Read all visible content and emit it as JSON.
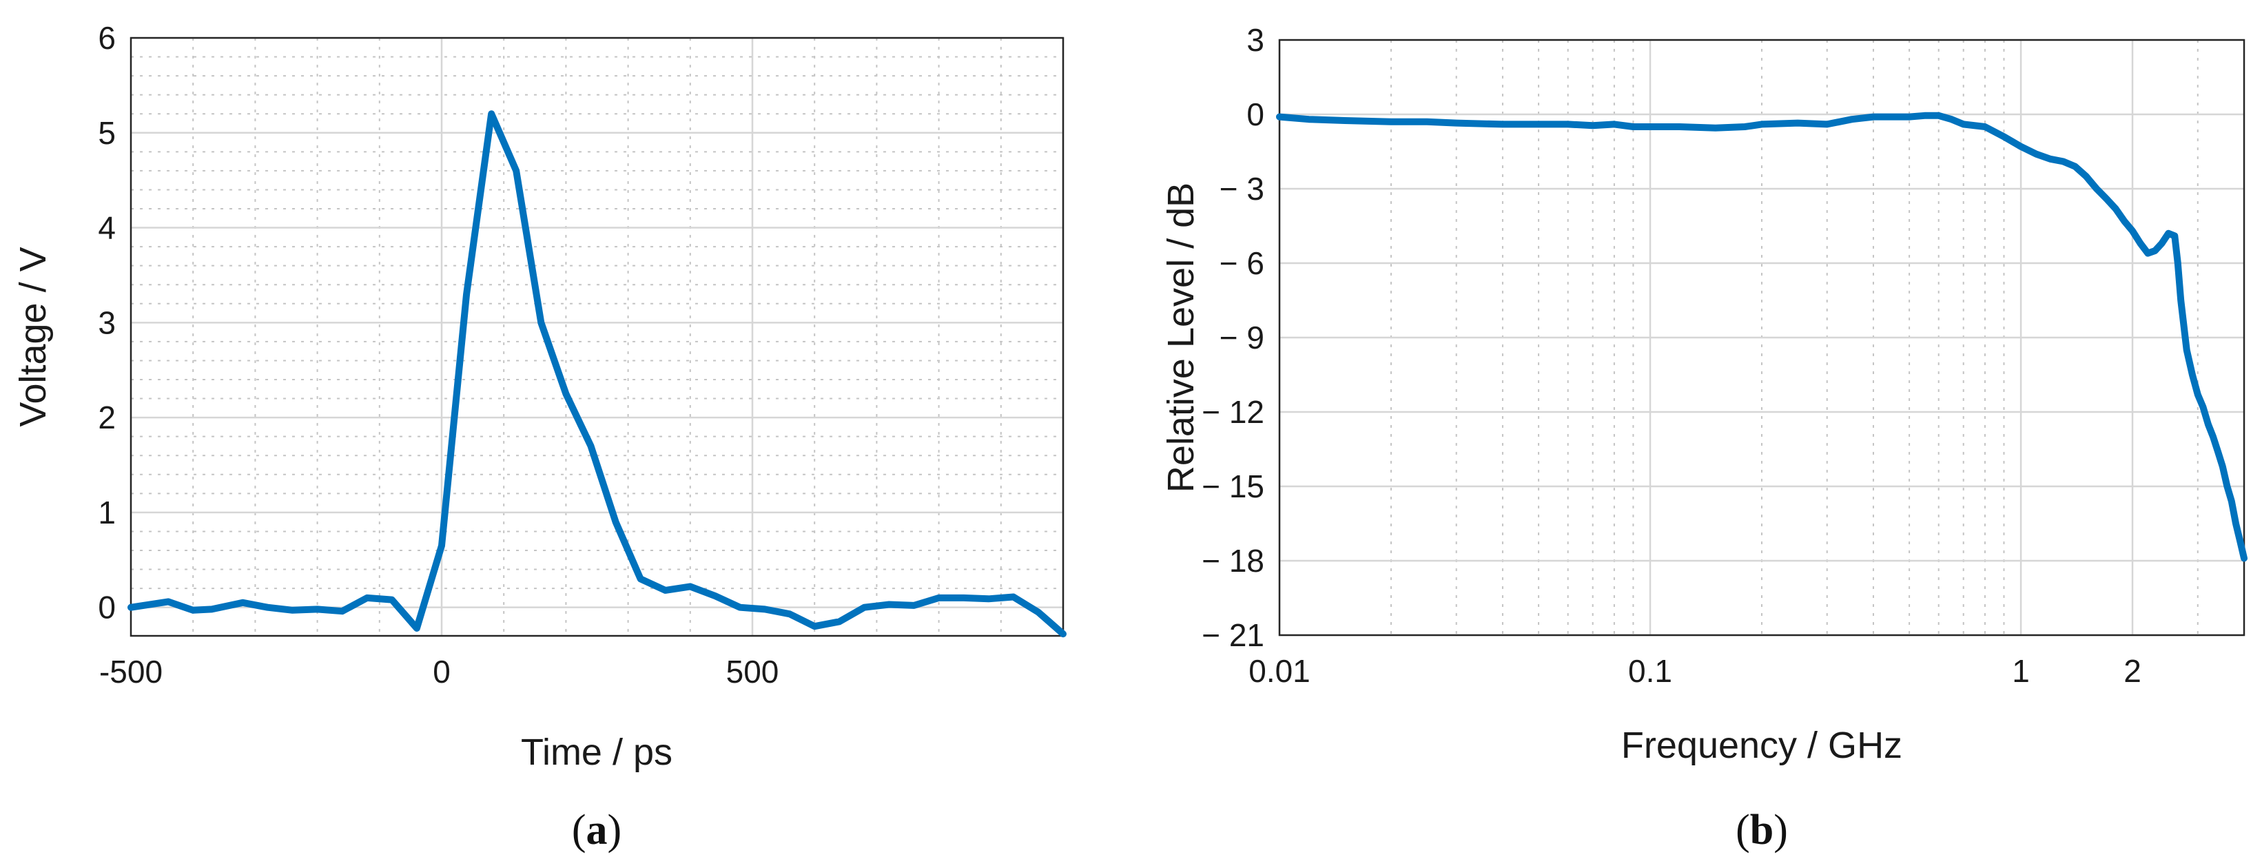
{
  "accent_color": "#0072BD",
  "chart_data": [
    {
      "type": "line",
      "caption_label": "a",
      "xlabel": "Time / ps",
      "ylabel": "Voltage / V",
      "xlim": [
        -500,
        1000
      ],
      "ylim": [
        -0.3,
        6
      ],
      "xticks": [
        -500,
        0,
        500
      ],
      "yticks": [
        0,
        1,
        2,
        3,
        4,
        5,
        6
      ],
      "grid": "major and minor",
      "series": [
        {
          "color": "#0072BD",
          "x": [
            -500,
            -440,
            -400,
            -370,
            -320,
            -280,
            -240,
            -200,
            -160,
            -120,
            -80,
            -40,
            0,
            40,
            80,
            120,
            160,
            200,
            240,
            280,
            320,
            360,
            400,
            440,
            480,
            520,
            560,
            600,
            640,
            680,
            720,
            760,
            800,
            840,
            880,
            920,
            960,
            1000
          ],
          "y": [
            0.0,
            0.06,
            -0.03,
            -0.02,
            0.05,
            0.0,
            -0.03,
            -0.02,
            -0.04,
            0.1,
            0.08,
            -0.22,
            0.65,
            3.3,
            5.2,
            4.6,
            3.0,
            2.25,
            1.7,
            0.9,
            0.3,
            0.18,
            0.22,
            0.12,
            0.0,
            -0.02,
            -0.07,
            -0.2,
            -0.15,
            0.0,
            0.03,
            0.02,
            0.1,
            0.1,
            0.09,
            0.11,
            -0.05,
            -0.28
          ]
        }
      ]
    },
    {
      "type": "line",
      "caption_label": "b",
      "xlabel": "Frequency / GHz",
      "ylabel": "Relative Level / dB",
      "xscale": "log",
      "xlim": [
        0.01,
        4
      ],
      "ylim": [
        -21,
        3
      ],
      "xticks": [
        0.01,
        0.1,
        1,
        2
      ],
      "xtick_labels": [
        "0.01",
        "0.1",
        "1",
        "2"
      ],
      "yticks": [
        3,
        0,
        -3,
        -6,
        -9,
        -12,
        -15,
        -18,
        -21
      ],
      "ytick_labels": [
        "3",
        "0",
        "− 3",
        "− 6",
        "− 9",
        "− 12",
        "− 15",
        "− 18",
        "− 21"
      ],
      "grid": "major and minor",
      "series": [
        {
          "color": "#0072BD",
          "x": [
            0.01,
            0.012,
            0.015,
            0.02,
            0.025,
            0.03,
            0.04,
            0.05,
            0.06,
            0.07,
            0.08,
            0.09,
            0.1,
            0.12,
            0.15,
            0.18,
            0.2,
            0.25,
            0.3,
            0.35,
            0.4,
            0.45,
            0.5,
            0.55,
            0.6,
            0.65,
            0.7,
            0.8,
            0.9,
            1.0,
            1.1,
            1.2,
            1.3,
            1.4,
            1.5,
            1.6,
            1.7,
            1.8,
            1.9,
            2.0,
            2.1,
            2.2,
            2.3,
            2.4,
            2.5,
            2.6,
            2.65,
            2.7,
            2.8,
            2.9,
            3.0,
            3.1,
            3.2,
            3.3,
            3.4,
            3.5,
            3.6,
            3.7,
            3.8,
            3.9,
            4.0
          ],
          "y": [
            -0.1,
            -0.2,
            -0.25,
            -0.3,
            -0.3,
            -0.35,
            -0.4,
            -0.4,
            -0.4,
            -0.45,
            -0.4,
            -0.5,
            -0.5,
            -0.5,
            -0.55,
            -0.5,
            -0.4,
            -0.35,
            -0.4,
            -0.2,
            -0.1,
            -0.1,
            -0.1,
            -0.05,
            -0.05,
            -0.2,
            -0.4,
            -0.5,
            -0.9,
            -1.3,
            -1.6,
            -1.8,
            -1.9,
            -2.1,
            -2.5,
            -3.0,
            -3.4,
            -3.8,
            -4.3,
            -4.7,
            -5.2,
            -5.6,
            -5.5,
            -5.2,
            -4.8,
            -4.9,
            -6.0,
            -7.5,
            -9.5,
            -10.5,
            -11.3,
            -11.8,
            -12.5,
            -13.0,
            -13.6,
            -14.2,
            -15.0,
            -15.6,
            -16.5,
            -17.2,
            -17.9
          ]
        }
      ]
    }
  ]
}
